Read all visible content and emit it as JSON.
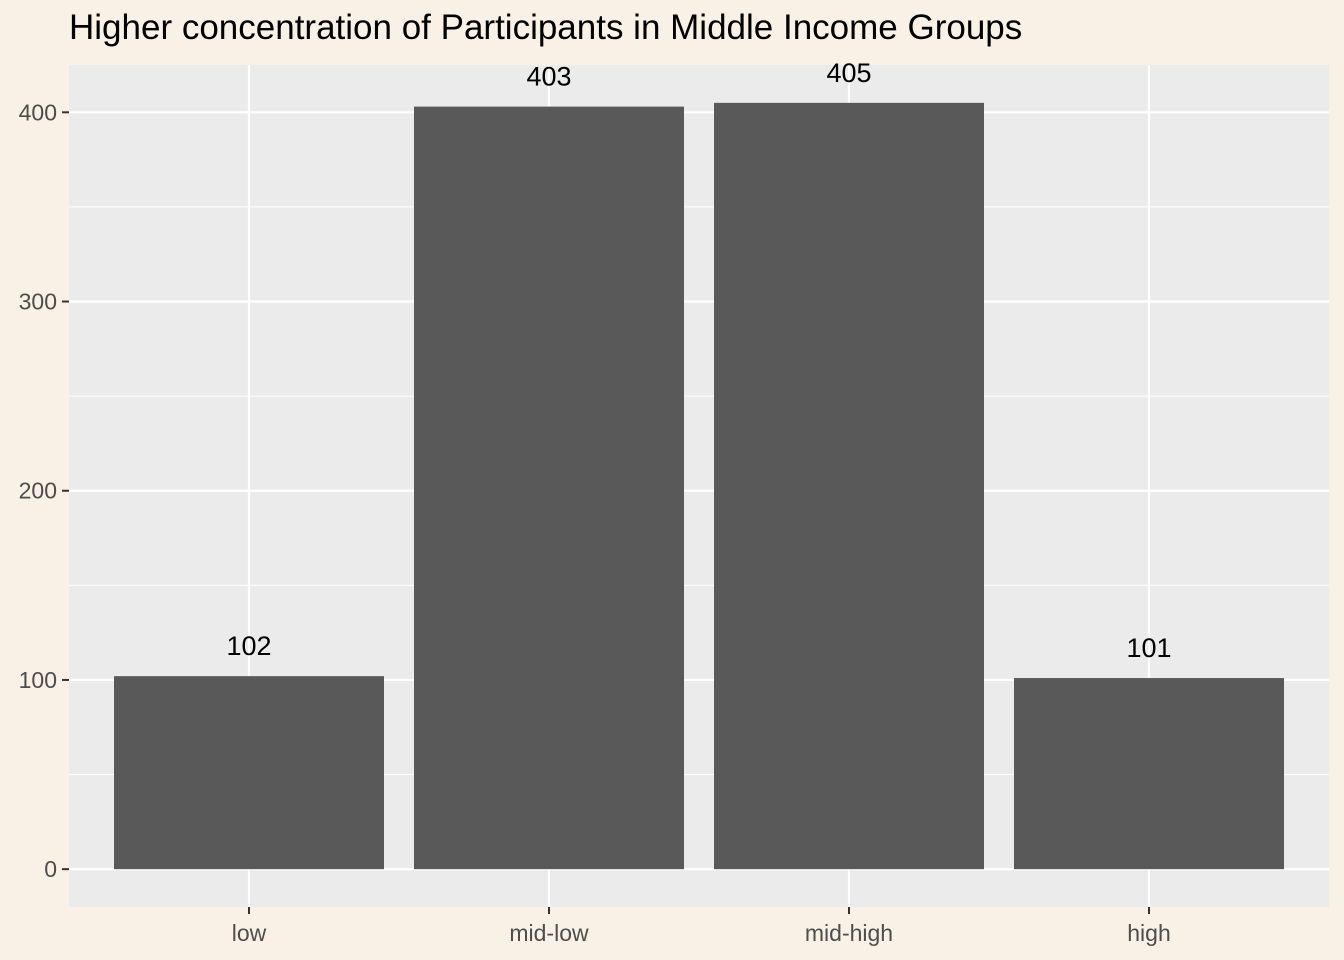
{
  "chart_data": {
    "type": "bar",
    "title": "Higher concentration of Participants in Middle Income Groups",
    "xlabel": "",
    "ylabel": "",
    "categories": [
      "low",
      "mid-low",
      "mid-high",
      "high"
    ],
    "values": [
      102,
      403,
      405,
      101
    ],
    "data_labels": [
      "102",
      "403",
      "405",
      "101"
    ],
    "ylim": [
      -20,
      425
    ],
    "yticks": [
      0,
      100,
      200,
      300,
      400
    ],
    "ytick_labels": [
      "0",
      "100",
      "200",
      "300",
      "400"
    ],
    "grid": true,
    "legend": "none",
    "colors": {
      "bar": "#595959",
      "panel": "#ebebeb",
      "grid": "#ffffff",
      "page_background": "#f9f1e6"
    }
  }
}
